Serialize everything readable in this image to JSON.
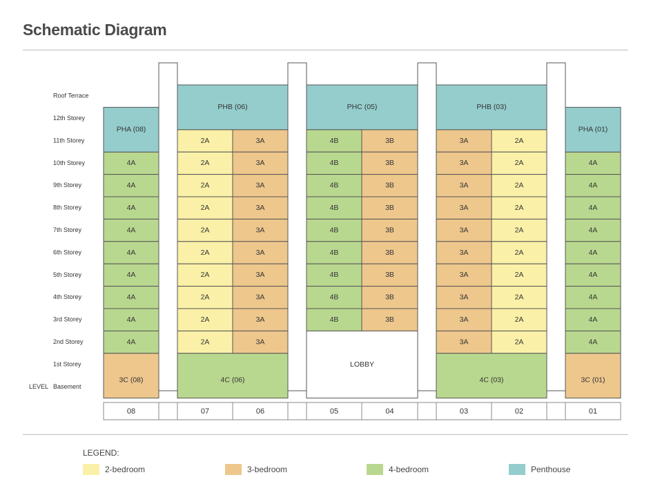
{
  "title": "Schematic Diagram",
  "colors": {
    "2-bedroom": "#fbf0a8",
    "3-bedroom": "#eec78d",
    "4-bedroom": "#b9d88f",
    "penthouse": "#95cdcd",
    "border": "#555555"
  },
  "level_header": "LEVEL",
  "levels": [
    "Roof Terrace",
    "12th Storey",
    "11th Storey",
    "10th Storey",
    "9th Storey",
    "8th Storey",
    "7th Storey",
    "6th Storey",
    "5th Storey",
    "4th Storey",
    "3rd Storey",
    "2nd Storey",
    "1st Storey",
    "Basement"
  ],
  "stacks": [
    "08",
    "07",
    "06",
    "05",
    "04",
    "03",
    "02",
    "01"
  ],
  "regular_units": {
    "08": {
      "type": "4-bedroom",
      "label": "4A",
      "levels": [
        "10th Storey",
        "9th Storey",
        "8th Storey",
        "7th Storey",
        "6th Storey",
        "5th Storey",
        "4th Storey",
        "3rd Storey",
        "2nd Storey"
      ]
    },
    "07": {
      "type": "2-bedroom",
      "label": "2A",
      "levels": [
        "11th Storey",
        "10th Storey",
        "9th Storey",
        "8th Storey",
        "7th Storey",
        "6th Storey",
        "5th Storey",
        "4th Storey",
        "3rd Storey",
        "2nd Storey"
      ]
    },
    "06": {
      "type": "3-bedroom",
      "label": "3A",
      "levels": [
        "11th Storey",
        "10th Storey",
        "9th Storey",
        "8th Storey",
        "7th Storey",
        "6th Storey",
        "5th Storey",
        "4th Storey",
        "3rd Storey",
        "2nd Storey"
      ]
    },
    "05": {
      "type": "4-bedroom",
      "label": "4B",
      "levels": [
        "11th Storey",
        "10th Storey",
        "9th Storey",
        "8th Storey",
        "7th Storey",
        "6th Storey",
        "5th Storey",
        "4th Storey",
        "3rd Storey"
      ]
    },
    "04": {
      "type": "3-bedroom",
      "label": "3B",
      "levels": [
        "11th Storey",
        "10th Storey",
        "9th Storey",
        "8th Storey",
        "7th Storey",
        "6th Storey",
        "5th Storey",
        "4th Storey",
        "3rd Storey"
      ]
    },
    "03": {
      "type": "3-bedroom",
      "label": "3A",
      "levels": [
        "11th Storey",
        "10th Storey",
        "9th Storey",
        "8th Storey",
        "7th Storey",
        "6th Storey",
        "5th Storey",
        "4th Storey",
        "3rd Storey",
        "2nd Storey"
      ]
    },
    "02": {
      "type": "2-bedroom",
      "label": "2A",
      "levels": [
        "11th Storey",
        "10th Storey",
        "9th Storey",
        "8th Storey",
        "7th Storey",
        "6th Storey",
        "5th Storey",
        "4th Storey",
        "3rd Storey",
        "2nd Storey"
      ]
    },
    "01": {
      "type": "4-bedroom",
      "label": "4A",
      "levels": [
        "10th Storey",
        "9th Storey",
        "8th Storey",
        "7th Storey",
        "6th Storey",
        "5th Storey",
        "4th Storey",
        "3rd Storey",
        "2nd Storey"
      ]
    }
  },
  "special_units": [
    {
      "label": "PHA (08)",
      "type": "penthouse",
      "stacks": [
        "08"
      ],
      "levels": [
        "12th Storey",
        "11th Storey"
      ]
    },
    {
      "label": "PHB (06)",
      "type": "penthouse",
      "stacks": [
        "07",
        "06"
      ],
      "levels": [
        "Roof Terrace",
        "12th Storey"
      ]
    },
    {
      "label": "PHC (05)",
      "type": "penthouse",
      "stacks": [
        "05",
        "04"
      ],
      "levels": [
        "Roof Terrace",
        "12th Storey"
      ]
    },
    {
      "label": "PHB (03)",
      "type": "penthouse",
      "stacks": [
        "03",
        "02"
      ],
      "levels": [
        "Roof Terrace",
        "12th Storey"
      ]
    },
    {
      "label": "PHA (01)",
      "type": "penthouse",
      "stacks": [
        "01"
      ],
      "levels": [
        "12th Storey",
        "11th Storey"
      ]
    },
    {
      "label": "3C (08)",
      "type": "3-bedroom",
      "stacks": [
        "08"
      ],
      "levels": [
        "1st Storey",
        "Basement"
      ]
    },
    {
      "label": "4C (06)",
      "type": "4-bedroom",
      "stacks": [
        "07",
        "06"
      ],
      "levels": [
        "1st Storey",
        "Basement"
      ]
    },
    {
      "label": "LOBBY",
      "type": "lobby",
      "stacks": [
        "05",
        "04"
      ],
      "levels": [
        "2nd Storey",
        "1st Storey",
        "Basement"
      ]
    },
    {
      "label": "4C (03)",
      "type": "4-bedroom",
      "stacks": [
        "03",
        "02"
      ],
      "levels": [
        "1st Storey",
        "Basement"
      ]
    },
    {
      "label": "3C (01)",
      "type": "3-bedroom",
      "stacks": [
        "01"
      ],
      "levels": [
        "1st Storey",
        "Basement"
      ]
    }
  ],
  "legend": {
    "title": "LEGEND:",
    "items": [
      {
        "label": "2-bedroom",
        "color": "#fbf0a8"
      },
      {
        "label": "3-bedroom",
        "color": "#eec78d"
      },
      {
        "label": "4-bedroom",
        "color": "#b9d88f"
      },
      {
        "label": "Penthouse",
        "color": "#95cdcd"
      }
    ]
  }
}
